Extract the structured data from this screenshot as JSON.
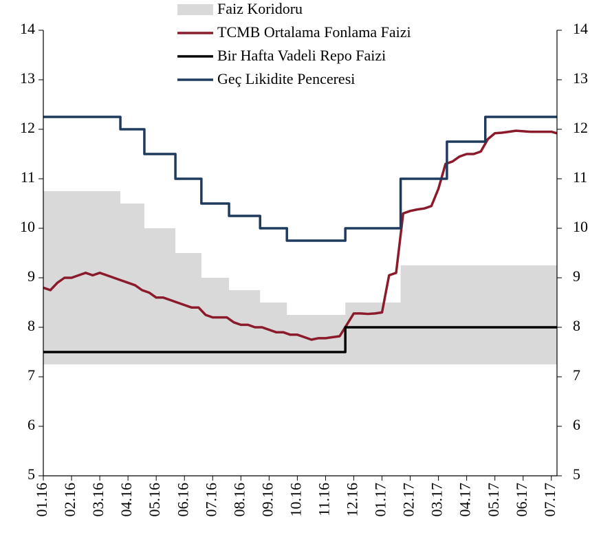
{
  "chart_data": {
    "type": "line",
    "xlim": [
      0,
      18.2
    ],
    "xticks": [
      {
        "value": 0,
        "label": "01.16"
      },
      {
        "value": 1,
        "label": "02.16"
      },
      {
        "value": 2,
        "label": "03.16"
      },
      {
        "value": 3,
        "label": "04.16"
      },
      {
        "value": 4,
        "label": "05.16"
      },
      {
        "value": 5,
        "label": "06.16"
      },
      {
        "value": 6,
        "label": "07.16"
      },
      {
        "value": 7,
        "label": "08.16"
      },
      {
        "value": 8,
        "label": "09.16"
      },
      {
        "value": 9,
        "label": "10.16"
      },
      {
        "value": 10,
        "label": "11.16"
      },
      {
        "value": 11,
        "label": "12.16"
      },
      {
        "value": 12,
        "label": "01.17"
      },
      {
        "value": 13,
        "label": "02.17"
      },
      {
        "value": 14,
        "label": "03.17"
      },
      {
        "value": 15,
        "label": "04.17"
      },
      {
        "value": 16,
        "label": "05.17"
      },
      {
        "value": 17,
        "label": "06.17"
      },
      {
        "value": 18,
        "label": "07.17"
      }
    ],
    "ylim": [
      5,
      14
    ],
    "yticks": [
      5,
      6,
      7,
      8,
      9,
      10,
      11,
      12,
      13,
      14
    ],
    "series": [
      {
        "name": "Faiz Koridoru",
        "type": "band",
        "color": "#d9d9d9",
        "x": [
          0,
          2.73,
          2.73,
          3.58,
          3.58,
          4.68,
          4.68,
          5.6,
          5.6,
          6.58,
          6.58,
          7.68,
          7.68,
          8.63,
          8.63,
          10.7,
          10.7,
          12.66,
          12.66,
          18.2
        ],
        "values": [
          10.75,
          10.75,
          10.5,
          10.5,
          10,
          10,
          9.5,
          9.5,
          9,
          9,
          8.75,
          8.75,
          8.5,
          8.5,
          8.25,
          8.25,
          8.5,
          8.5,
          9.25,
          9.25
        ],
        "lower": [
          7.25,
          7.25,
          7.25,
          7.25,
          7.25,
          7.25,
          7.25,
          7.25,
          7.25,
          7.25,
          7.25,
          7.25,
          7.25,
          7.25,
          7.25,
          7.25,
          7.25,
          7.25,
          7.25,
          7.25
        ]
      },
      {
        "name": "TCMB Ortalama Fonlama Faizi",
        "color": "#8b1a2b",
        "x": [
          0,
          0.25,
          0.5,
          0.75,
          1,
          1.25,
          1.5,
          1.75,
          2,
          2.25,
          2.5,
          2.75,
          3,
          3.25,
          3.5,
          3.75,
          4,
          4.25,
          4.5,
          4.75,
          5,
          5.25,
          5.5,
          5.75,
          6,
          6.25,
          6.5,
          6.75,
          7,
          7.25,
          7.5,
          7.75,
          8,
          8.25,
          8.5,
          8.75,
          9,
          9.25,
          9.5,
          9.75,
          10,
          10.25,
          10.5,
          10.75,
          11,
          11.25,
          11.5,
          11.75,
          12,
          12.25,
          12.5,
          12.75,
          13,
          13.25,
          13.5,
          13.75,
          14,
          14.25,
          14.5,
          14.75,
          15,
          15.25,
          15.5,
          15.75,
          16,
          16.25,
          16.5,
          16.75,
          17,
          17.25,
          17.5,
          17.75,
          18,
          18.2
        ],
        "values": [
          8.8,
          8.75,
          8.9,
          9,
          9,
          9.05,
          9.1,
          9.05,
          9.1,
          9.05,
          9,
          8.95,
          8.9,
          8.85,
          8.75,
          8.7,
          8.6,
          8.6,
          8.55,
          8.5,
          8.45,
          8.4,
          8.4,
          8.25,
          8.2,
          8.2,
          8.2,
          8.1,
          8.05,
          8.05,
          8,
          8,
          7.95,
          7.9,
          7.9,
          7.85,
          7.85,
          7.8,
          7.75,
          7.78,
          7.78,
          7.8,
          7.82,
          8.05,
          8.28,
          8.28,
          8.27,
          8.28,
          8.3,
          9.05,
          9.1,
          10.3,
          10.35,
          10.38,
          10.4,
          10.45,
          10.8,
          11.3,
          11.35,
          11.45,
          11.5,
          11.5,
          11.55,
          11.8,
          11.92,
          11.93,
          11.95,
          11.97,
          11.96,
          11.95,
          11.95,
          11.95,
          11.95,
          11.92
        ]
      },
      {
        "name": "Bir Hafta Vadeli Repo Faizi",
        "color": "#000000",
        "x": [
          0,
          10.7,
          10.7,
          18.2
        ],
        "values": [
          7.5,
          7.5,
          8,
          8
        ]
      },
      {
        "name": "Geç Likidite Penceresi",
        "color": "#1f3a5f",
        "x": [
          0,
          2.73,
          2.73,
          3.58,
          3.58,
          4.68,
          4.68,
          5.6,
          5.6,
          6.58,
          6.58,
          7.68,
          7.68,
          8.63,
          8.63,
          10.7,
          10.7,
          12.66,
          12.66,
          14.3,
          14.3,
          15.66,
          15.66,
          18.2
        ],
        "values": [
          12.25,
          12.25,
          12,
          12,
          11.5,
          11.5,
          11,
          11,
          10.5,
          10.5,
          10.25,
          10.25,
          10,
          10,
          9.75,
          9.75,
          10,
          10,
          11,
          11,
          11.75,
          11.75,
          12.25,
          12.25
        ]
      }
    ]
  }
}
